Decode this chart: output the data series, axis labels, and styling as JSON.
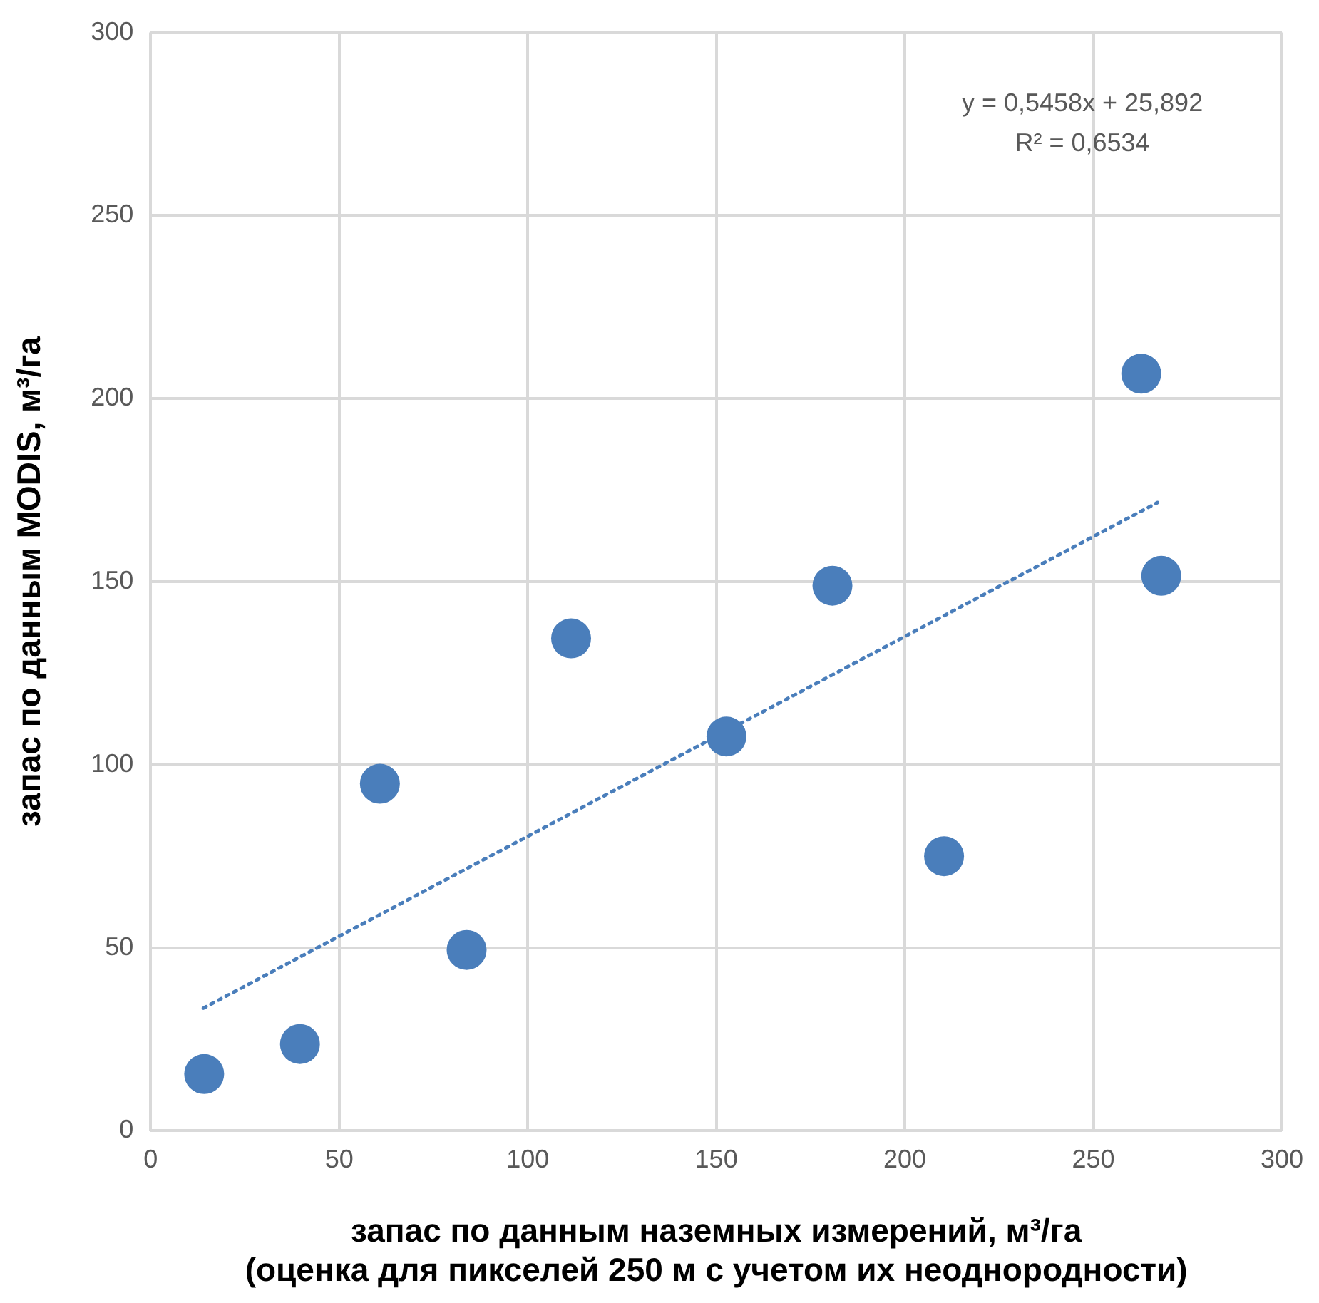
{
  "chart_data": {
    "type": "scatter",
    "xlabel": "запас по данным наземных измерений, м³/га\n(оценка для пикселей 250 м с учетом их неоднородности)",
    "ylabel": "запас по данным MODIS, м³/га",
    "annotations": [
      "y = 0,5458x + 25,892",
      "R² = 0,6534"
    ],
    "xlim": [
      0,
      300
    ],
    "xticks": [
      0,
      50,
      100,
      150,
      200,
      250,
      300
    ],
    "ylim": [
      0,
      300
    ],
    "yticks": [
      0,
      50,
      100,
      150,
      200,
      250,
      300
    ],
    "grid": true,
    "legend": false,
    "marker": "circle",
    "series": [
      {
        "type": "scatter",
        "color": "#4a7ebb",
        "x": [
          14.2,
          39.6,
          60.8,
          83.8,
          111.5,
          152.7,
          180.8,
          210.4,
          262.7,
          268
        ],
        "values": [
          15.5,
          23.7,
          94.8,
          49.4,
          134.5,
          107.7,
          148.9,
          75,
          206.8,
          151.6
        ]
      },
      {
        "type": "line",
        "color": "#4a7ebb",
        "x": [
          14,
          267
        ],
        "values": [
          33.5,
          171.6
        ],
        "line_style": "dotted",
        "marker": "none"
      }
    ]
  }
}
